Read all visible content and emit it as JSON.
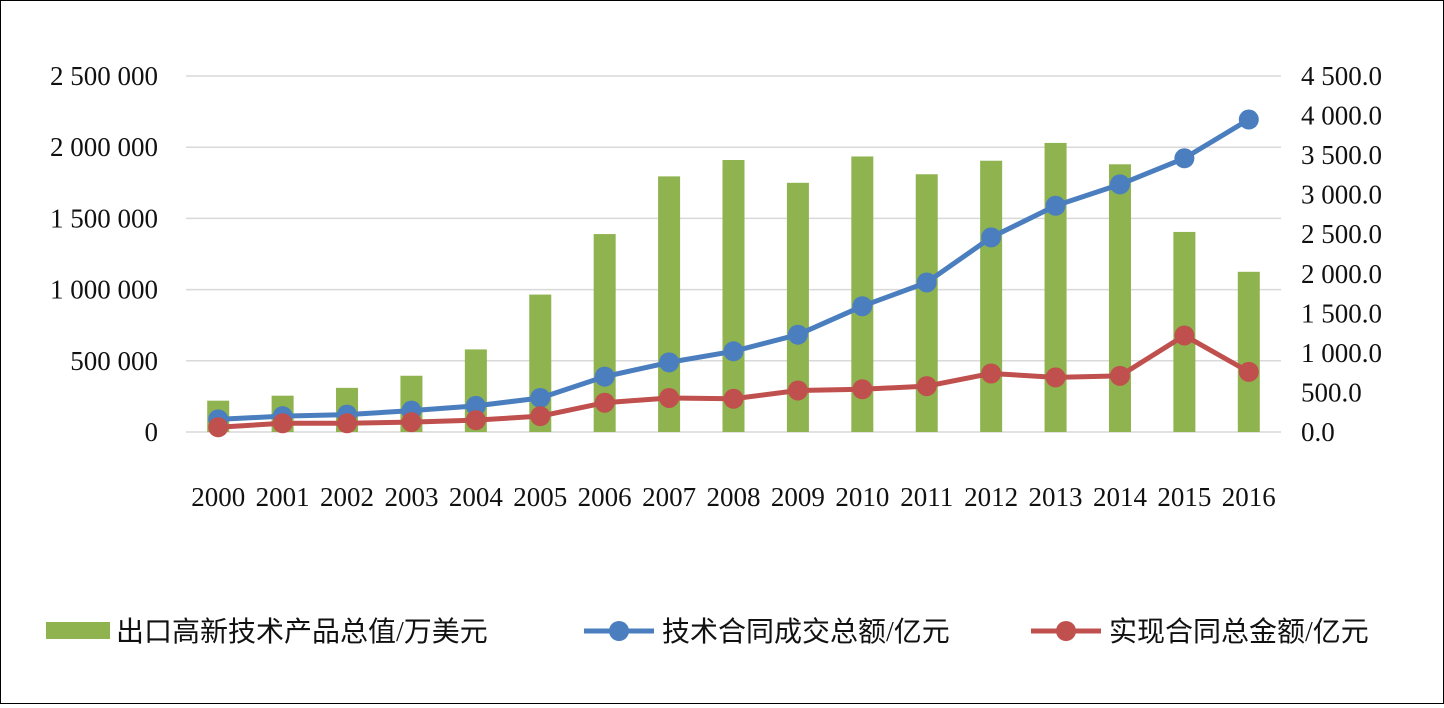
{
  "chart_data": {
    "type": "bar+line",
    "categories": [
      "2000",
      "2001",
      "2002",
      "2003",
      "2004",
      "2005",
      "2006",
      "2007",
      "2008",
      "2009",
      "2010",
      "2011",
      "2012",
      "2013",
      "2014",
      "2015",
      "2016"
    ],
    "y_left": {
      "ylim": [
        0,
        2500000
      ],
      "ticks": [
        0,
        500000,
        1000000,
        1500000,
        2000000,
        2500000
      ],
      "tick_labels": [
        "0",
        "500 000",
        "1 000 000",
        "1 500 000",
        "2 000 000",
        "2 500 000"
      ]
    },
    "y_right": {
      "ylim": [
        0,
        4500
      ],
      "ticks": [
        0,
        500,
        1000,
        1500,
        2000,
        2500,
        3000,
        3500,
        4000,
        4500
      ],
      "tick_labels": [
        "0.0",
        "500.0",
        "1 000.0",
        "1 500.0",
        "2 000.0",
        "2 500.0",
        "3 000.0",
        "3 500.0",
        "4 000.0",
        "4 500.0"
      ]
    },
    "grid": true,
    "legend_position": "bottom",
    "series": [
      {
        "name": "出口高新技术产品总值/万美元",
        "type": "bar",
        "axis": "left",
        "color": "#8fb34f",
        "values": [
          220000,
          255000,
          310000,
          395000,
          580000,
          965000,
          1390000,
          1795000,
          1910000,
          1750000,
          1935000,
          1810000,
          1905000,
          2030000,
          1880000,
          1405000,
          1125000
        ]
      },
      {
        "name": "技术合同成交总额/亿元",
        "type": "line",
        "axis": "right",
        "color": "#4a7ebf",
        "values": [
          160,
          200,
          220,
          270,
          330,
          430,
          700,
          880,
          1020,
          1230,
          1590,
          1890,
          2460,
          2860,
          3130,
          3460,
          3950
        ]
      },
      {
        "name": "实现合同总金额/亿元",
        "type": "line",
        "axis": "right",
        "color": "#c0504d",
        "values": [
          60,
          110,
          110,
          125,
          150,
          200,
          370,
          430,
          420,
          525,
          540,
          580,
          740,
          690,
          710,
          1220,
          760
        ]
      }
    ]
  }
}
